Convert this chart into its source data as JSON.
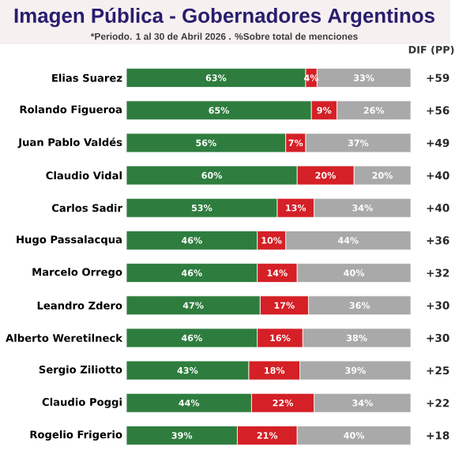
{
  "chart_data": {
    "type": "bar",
    "orientation": "horizontal",
    "stacked": true,
    "title": "Imagen Pública - Gobernadores Argentinos",
    "subtitle": "*Periodo. 1 al 30 de Abril 2026 . %Sobre total de menciones",
    "categories": [
      "Elias Suarez",
      "Rolando Figueroa",
      "Juan Pablo Valdés",
      "Claudio Vidal",
      "Carlos Sadir",
      "Hugo Passalacqua",
      "Marcelo Orrego",
      "Leandro Zdero",
      "Alberto Weretilneck",
      "Sergio Ziliotto",
      "Claudio Poggi",
      "Rogelio Frigerio"
    ],
    "xlim": [
      0,
      100
    ],
    "series": [
      {
        "color": "#2e7d3e",
        "values": [
          63,
          65,
          56,
          60,
          53,
          46,
          46,
          47,
          46,
          43,
          44,
          39
        ],
        "value_labels": [
          "63%",
          "65%",
          "56%",
          "60%",
          "53%",
          "46%",
          "46%",
          "47%",
          "46%",
          "43%",
          "44%",
          "39%"
        ]
      },
      {
        "color": "#d42026",
        "values": [
          4,
          9,
          7,
          20,
          13,
          10,
          14,
          17,
          16,
          18,
          22,
          21
        ],
        "value_labels": [
          "4%",
          "9%",
          "7%",
          "20%",
          "13%",
          "10%",
          "14%",
          "17%",
          "16%",
          "18%",
          "22%",
          "21%"
        ]
      },
      {
        "color": "#a9a9a9",
        "values": [
          33,
          26,
          37,
          20,
          34,
          44,
          40,
          36,
          38,
          39,
          34,
          40
        ],
        "value_labels": [
          "33%",
          "26%",
          "37%",
          "20%",
          "34%",
          "44%",
          "40%",
          "36%",
          "38%",
          "39%",
          "34%",
          "40%"
        ]
      }
    ],
    "annotations": [
      "DIF (PP)",
      "+59",
      "+56",
      "+49",
      "+40",
      "+40",
      "+36",
      "+32",
      "+30",
      "+30",
      "+25",
      "+22",
      "+18"
    ]
  }
}
